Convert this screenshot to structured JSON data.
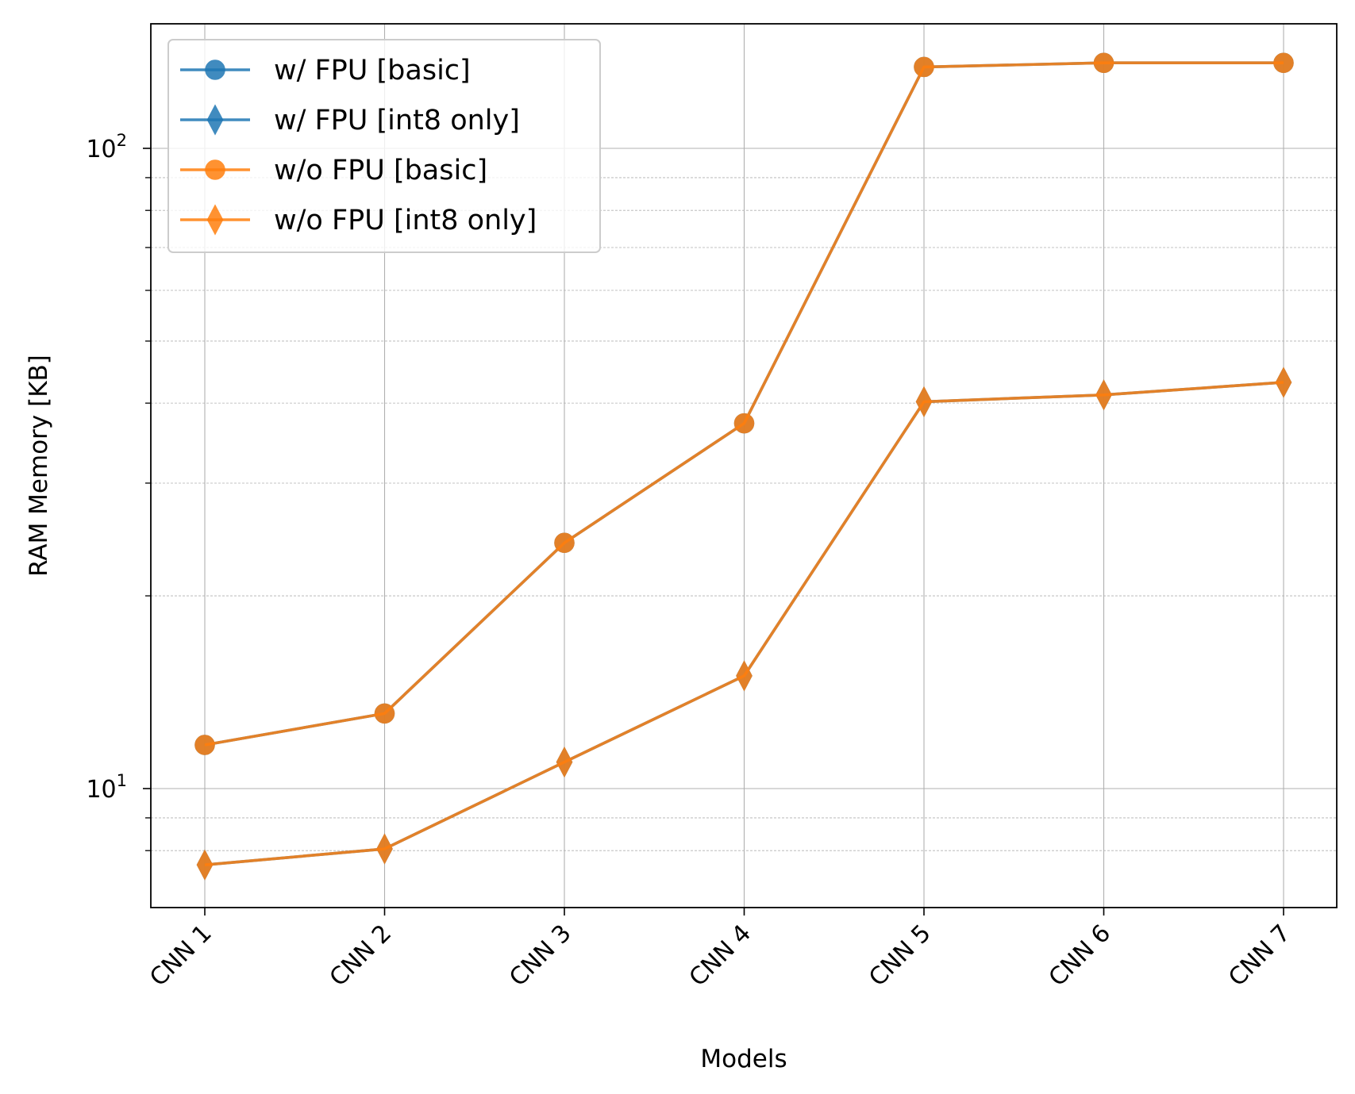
{
  "chart_data": {
    "type": "line",
    "title": "",
    "xlabel": "Models",
    "ylabel": "RAM Memory [KB]",
    "yscale": "log",
    "ylim": [
      7.6,
      175
    ],
    "categories": [
      "CNN 1",
      "CNN 2",
      "CNN 3",
      "CNN 4",
      "CNN 5",
      "CNN 6",
      "CNN 7"
    ],
    "ytick_labels": [
      {
        "value": 10,
        "base": "10",
        "exp": "1"
      },
      {
        "value": 100,
        "base": "10",
        "exp": "2"
      }
    ],
    "grid": true,
    "legend_position": "top-left",
    "series": [
      {
        "name": "w/ FPU [basic]",
        "marker": "circle",
        "color": "#1f77b4",
        "values": [
          11.7,
          13.1,
          24.2,
          37.2,
          134.0,
          136.0,
          136.0
        ]
      },
      {
        "name": "w/ FPU [int8 only]",
        "marker": "diamond",
        "color": "#1f77b4",
        "values": [
          7.6,
          8.05,
          11.0,
          15.0,
          40.2,
          41.2,
          43.1
        ]
      },
      {
        "name": "w/o FPU [basic]",
        "marker": "circle",
        "color": "#ff7f0e",
        "values": [
          11.7,
          13.1,
          24.2,
          37.2,
          134.0,
          136.0,
          136.0
        ]
      },
      {
        "name": "w/o FPU [int8 only]",
        "marker": "diamond",
        "color": "#ff7f0e",
        "values": [
          7.6,
          8.05,
          11.0,
          15.0,
          40.2,
          41.2,
          43.1
        ]
      }
    ]
  }
}
